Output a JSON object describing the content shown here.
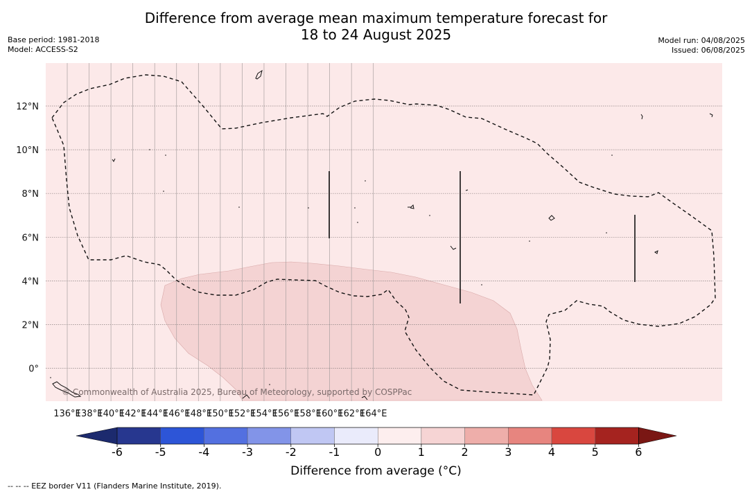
{
  "title_line1": "Difference from average mean maximum temperature forecast for",
  "title_line2": "18 to 24 August 2025",
  "base_period": "Base period: 1981-2018",
  "model": "Model: ACCESS-S2",
  "model_run": "Model run: 04/08/2025",
  "issued": "Issued: 06/08/2025",
  "copyright": "© Commonwealth of Australia 2025, Bureau of Meteorology, supported by COSPPac",
  "x_ticks": [
    "136°E",
    "138°E",
    "140°E",
    "142°E",
    "144°E",
    "146°E",
    "148°E",
    "150°E",
    "152°E",
    "154°E",
    "156°E",
    "158°E",
    "160°E",
    "162°E",
    "164°E"
  ],
  "y_ticks": [
    "12°N",
    "10°N",
    "8°N",
    "6°N",
    "4°N",
    "2°N",
    "0°"
  ],
  "colorbar": {
    "title": "Difference from average (°C)",
    "labels": [
      "-6",
      "-5",
      "-4",
      "-3",
      "-2",
      "-1",
      "0",
      "1",
      "2",
      "3",
      "4",
      "5",
      "6"
    ],
    "colors": [
      "#27378f",
      "#2d55d7",
      "#5370e0",
      "#8294e8",
      "#c0c7f3",
      "#eaebfb",
      "#fdeeee",
      "#f6d4d4",
      "#eeaeaa",
      "#e7857f",
      "#d9473f",
      "#a5231f"
    ],
    "under_color": "#1c2a6e",
    "over_color": "#7a1714"
  },
  "map": {
    "background_color": "#fce9e9",
    "anomaly_region_color": "#f4d3d3"
  },
  "footnote": "-- -- -- EEZ border V11 (Flanders Marine Institute, 2019)."
}
